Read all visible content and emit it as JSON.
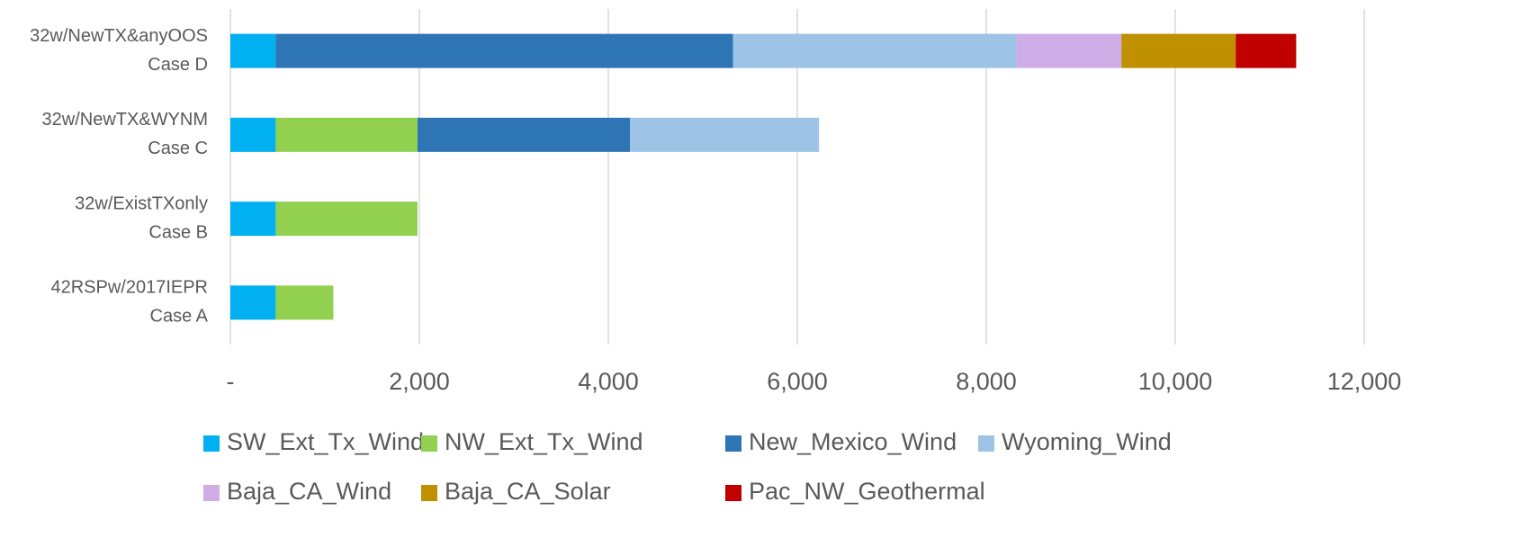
{
  "chart_data": {
    "type": "stacked-barh",
    "categories": [
      [
        "32w/NewTX&anyOOS",
        "Case D"
      ],
      [
        "32w/NewTX&WYNM",
        "Case C"
      ],
      [
        "32w/ExistTXonly",
        "Case B"
      ],
      [
        "42RSPw/2017IEPR",
        "Case A"
      ]
    ],
    "series": [
      {
        "name": "SW_Ext_Tx_Wind",
        "color": "#00b0f0",
        "values": [
          480,
          480,
          480,
          480
        ]
      },
      {
        "name": "NW_Ext_Tx_Wind",
        "color": "#92d050",
        "values": [
          0,
          1500,
          1500,
          610
        ]
      },
      {
        "name": "New_Mexico_Wind",
        "color": "#2e75b6",
        "values": [
          4840,
          2250,
          0,
          0
        ]
      },
      {
        "name": "Wyoming_Wind",
        "color": "#9dc3e6",
        "values": [
          3000,
          2000,
          0,
          0
        ]
      },
      {
        "name": "Baja_CA_Wind",
        "color": "#cfaee8",
        "values": [
          1110,
          0,
          0,
          0
        ]
      },
      {
        "name": "Baja_CA_Solar",
        "color": "#bf9000",
        "values": [
          1210,
          0,
          0,
          0
        ]
      },
      {
        "name": "Pac_NW_Geothermal",
        "color": "#c00000",
        "values": [
          640,
          0,
          0,
          0
        ]
      }
    ],
    "xlim": [
      0,
      12000
    ],
    "xticks": [
      {
        "value": 0,
        "label": "-"
      },
      {
        "value": 2000,
        "label": "2,000"
      },
      {
        "value": 4000,
        "label": "4,000"
      },
      {
        "value": 6000,
        "label": "6,000"
      },
      {
        "value": 8000,
        "label": "8,000"
      },
      {
        "value": 10000,
        "label": "10,000"
      },
      {
        "value": 12000,
        "label": "12,000"
      }
    ],
    "grid": true,
    "legend": "bottom"
  }
}
